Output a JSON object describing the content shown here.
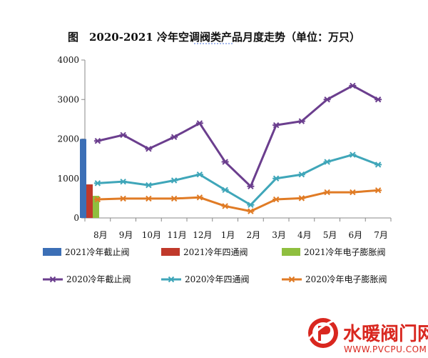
{
  "chart_data": {
    "type": "line",
    "title": "图　2020-2021 冷年空调阀类产品月度走势（单位：万只）",
    "categories": [
      "8月",
      "9月",
      "10月",
      "11月",
      "12月",
      "1月",
      "2月",
      "3月",
      "4月",
      "5月",
      "6月",
      "7月"
    ],
    "ylim": [
      0,
      4000
    ],
    "yticks": [
      "0",
      "1000",
      "2000",
      "3000",
      "4000"
    ],
    "grid": false,
    "legend_position": "bottom",
    "bar_series": [
      {
        "name": "2021冷年截止阀",
        "color": "#3c6fb6",
        "values": [
          2000,
          null,
          null,
          null,
          null,
          null,
          null,
          null,
          null,
          null,
          null,
          null
        ]
      },
      {
        "name": "2021冷年四通阀",
        "color": "#c0392b",
        "values": [
          850,
          null,
          null,
          null,
          null,
          null,
          null,
          null,
          null,
          null,
          null,
          null
        ]
      },
      {
        "name": "2021冷年电子膨胀阀",
        "color": "#8fbf3f",
        "values": [
          560,
          null,
          null,
          null,
          null,
          null,
          null,
          null,
          null,
          null,
          null,
          null
        ]
      }
    ],
    "series": [
      {
        "name": "2020冷年截止阀",
        "color": "#6b3e8e",
        "values": [
          1950,
          2100,
          1750,
          2050,
          2400,
          1420,
          800,
          2350,
          2450,
          3000,
          3350,
          3000
        ]
      },
      {
        "name": "2020冷年四通阀",
        "color": "#3fa6b9",
        "values": [
          880,
          920,
          830,
          950,
          1100,
          710,
          330,
          1000,
          1100,
          1420,
          1600,
          1350
        ]
      },
      {
        "name": "2020冷年电子膨胀阀",
        "color": "#e07b25",
        "values": [
          470,
          490,
          490,
          490,
          520,
          300,
          170,
          470,
          500,
          650,
          650,
          700
        ]
      }
    ]
  },
  "watermark": {
    "brand": "水暖阀门网",
    "url": "WWW.PVCPU.COM",
    "logo_letter": "P",
    "color": "#d9271f"
  }
}
